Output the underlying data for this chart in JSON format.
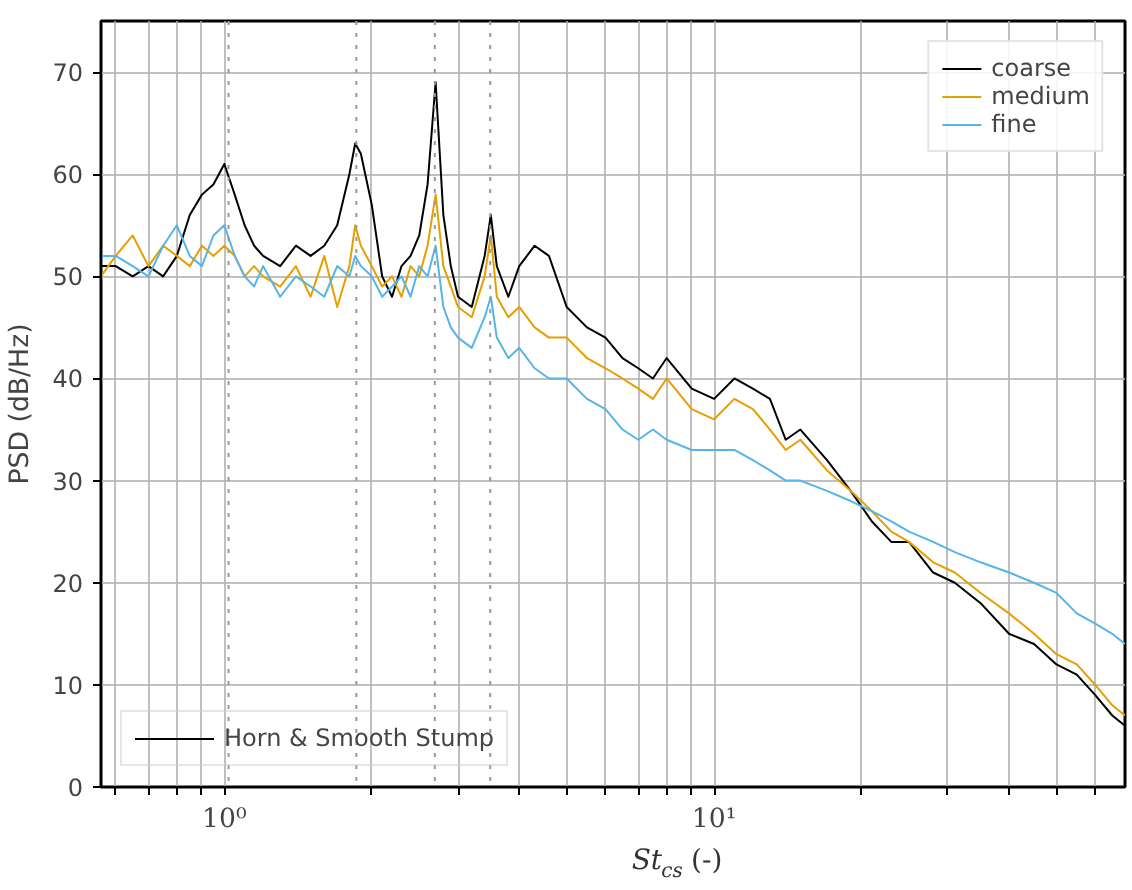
{
  "chart_data": {
    "type": "line",
    "xlabel": "St$_{cs}$ (-)",
    "ylabel": "PSD (dB/Hz)",
    "log": "x",
    "grid": true,
    "legend": "top right",
    "line_style": "solid",
    "marker": "none",
    "annotations": [
      "Horn & Smooth Stump"
    ],
    "xlim": [
      0.56,
      69
    ],
    "ylim": [
      0,
      75
    ],
    "xticks": [
      {
        "value": 0.6,
        "label": null
      },
      {
        "value": 0.7,
        "label": null
      },
      {
        "value": 0.8,
        "label": null
      },
      {
        "value": 0.9,
        "label": null
      },
      {
        "value": 1,
        "label": "10⁰"
      },
      {
        "value": 2,
        "label": null
      },
      {
        "value": 3,
        "label": null
      },
      {
        "value": 4,
        "label": null
      },
      {
        "value": 5,
        "label": null
      },
      {
        "value": 6,
        "label": null
      },
      {
        "value": 7,
        "label": null
      },
      {
        "value": 8,
        "label": null
      },
      {
        "value": 9,
        "label": null
      },
      {
        "value": 10,
        "label": "10¹"
      },
      {
        "value": 20,
        "label": null
      },
      {
        "value": 30,
        "label": null
      },
      {
        "value": 40,
        "label": null
      },
      {
        "value": 50,
        "label": null
      },
      {
        "value": 60,
        "label": null
      }
    ],
    "yticks": [
      0,
      10,
      20,
      30,
      40,
      50,
      60,
      70
    ],
    "ref_lines": [
      {
        "axis": "x",
        "value": 1.02,
        "label": null,
        "color": "#999999",
        "line_style": "dotted"
      },
      {
        "axis": "x",
        "value": 1.86,
        "label": null,
        "color": "#999999",
        "line_style": "dotted"
      },
      {
        "axis": "x",
        "value": 2.69,
        "label": null,
        "color": "#999999",
        "line_style": "dotted"
      },
      {
        "axis": "x",
        "value": 3.49,
        "label": null,
        "color": "#999999",
        "line_style": "dotted"
      }
    ],
    "x": [
      0.56,
      0.6,
      0.65,
      0.7,
      0.75,
      0.8,
      0.85,
      0.9,
      0.95,
      1.0,
      1.05,
      1.1,
      1.15,
      1.2,
      1.3,
      1.4,
      1.5,
      1.6,
      1.7,
      1.8,
      1.85,
      1.9,
      2.0,
      2.1,
      2.2,
      2.3,
      2.4,
      2.5,
      2.6,
      2.7,
      2.8,
      2.9,
      3.0,
      3.2,
      3.4,
      3.5,
      3.6,
      3.8,
      4.0,
      4.3,
      4.6,
      5.0,
      5.5,
      6,
      6.5,
      7,
      7.5,
      8,
      9,
      10,
      11,
      12,
      13,
      14,
      15,
      17,
      19,
      21,
      23,
      25,
      28,
      31,
      35,
      40,
      45,
      50,
      55,
      60,
      65,
      69
    ],
    "series": [
      {
        "name": "coarse",
        "color": "#000000",
        "values": [
          51,
          51,
          50,
          51,
          50,
          52,
          56,
          58,
          59,
          61,
          58,
          55,
          53,
          52,
          51,
          53,
          52,
          53,
          55,
          60,
          63,
          62,
          57,
          50,
          48,
          51,
          52,
          54,
          59,
          69,
          56,
          51,
          48,
          47,
          52,
          56,
          51,
          48,
          51,
          53,
          52,
          47,
          45,
          44,
          42,
          41,
          40,
          42,
          39,
          38,
          40,
          39,
          38,
          34,
          35,
          32,
          29,
          26,
          24,
          24,
          21,
          20,
          18,
          15,
          14,
          12,
          11,
          9,
          7,
          6
        ]
      },
      {
        "name": "medium",
        "color": "#e69f00",
        "values": [
          50,
          52,
          54,
          51,
          53,
          52,
          51,
          53,
          52,
          53,
          52,
          50,
          51,
          50,
          49,
          51,
          48,
          52,
          47,
          51,
          55,
          53,
          51,
          49,
          50,
          48,
          51,
          50,
          53,
          58,
          51,
          49,
          47,
          46,
          50,
          54,
          48,
          46,
          47,
          45,
          44,
          44,
          42,
          41,
          40,
          39,
          38,
          40,
          37,
          36,
          38,
          37,
          35,
          33,
          34,
          31,
          29,
          27,
          25,
          24,
          22,
          21,
          19,
          17,
          15,
          13,
          12,
          10,
          8,
          7
        ]
      },
      {
        "name": "fine",
        "color": "#56b4e9",
        "values": [
          52,
          52,
          51,
          50,
          53,
          55,
          52,
          51,
          54,
          55,
          52,
          50,
          49,
          51,
          48,
          50,
          49,
          48,
          51,
          50,
          52,
          51,
          50,
          48,
          49,
          50,
          48,
          51,
          50,
          53,
          47,
          45,
          44,
          43,
          46,
          48,
          44,
          42,
          43,
          41,
          40,
          40,
          38,
          37,
          35,
          34,
          35,
          34,
          33,
          33,
          33,
          32,
          31,
          30,
          30,
          29,
          28,
          27,
          26,
          25,
          24,
          23,
          22,
          21,
          20,
          19,
          17,
          16,
          15,
          14
        ]
      }
    ]
  }
}
